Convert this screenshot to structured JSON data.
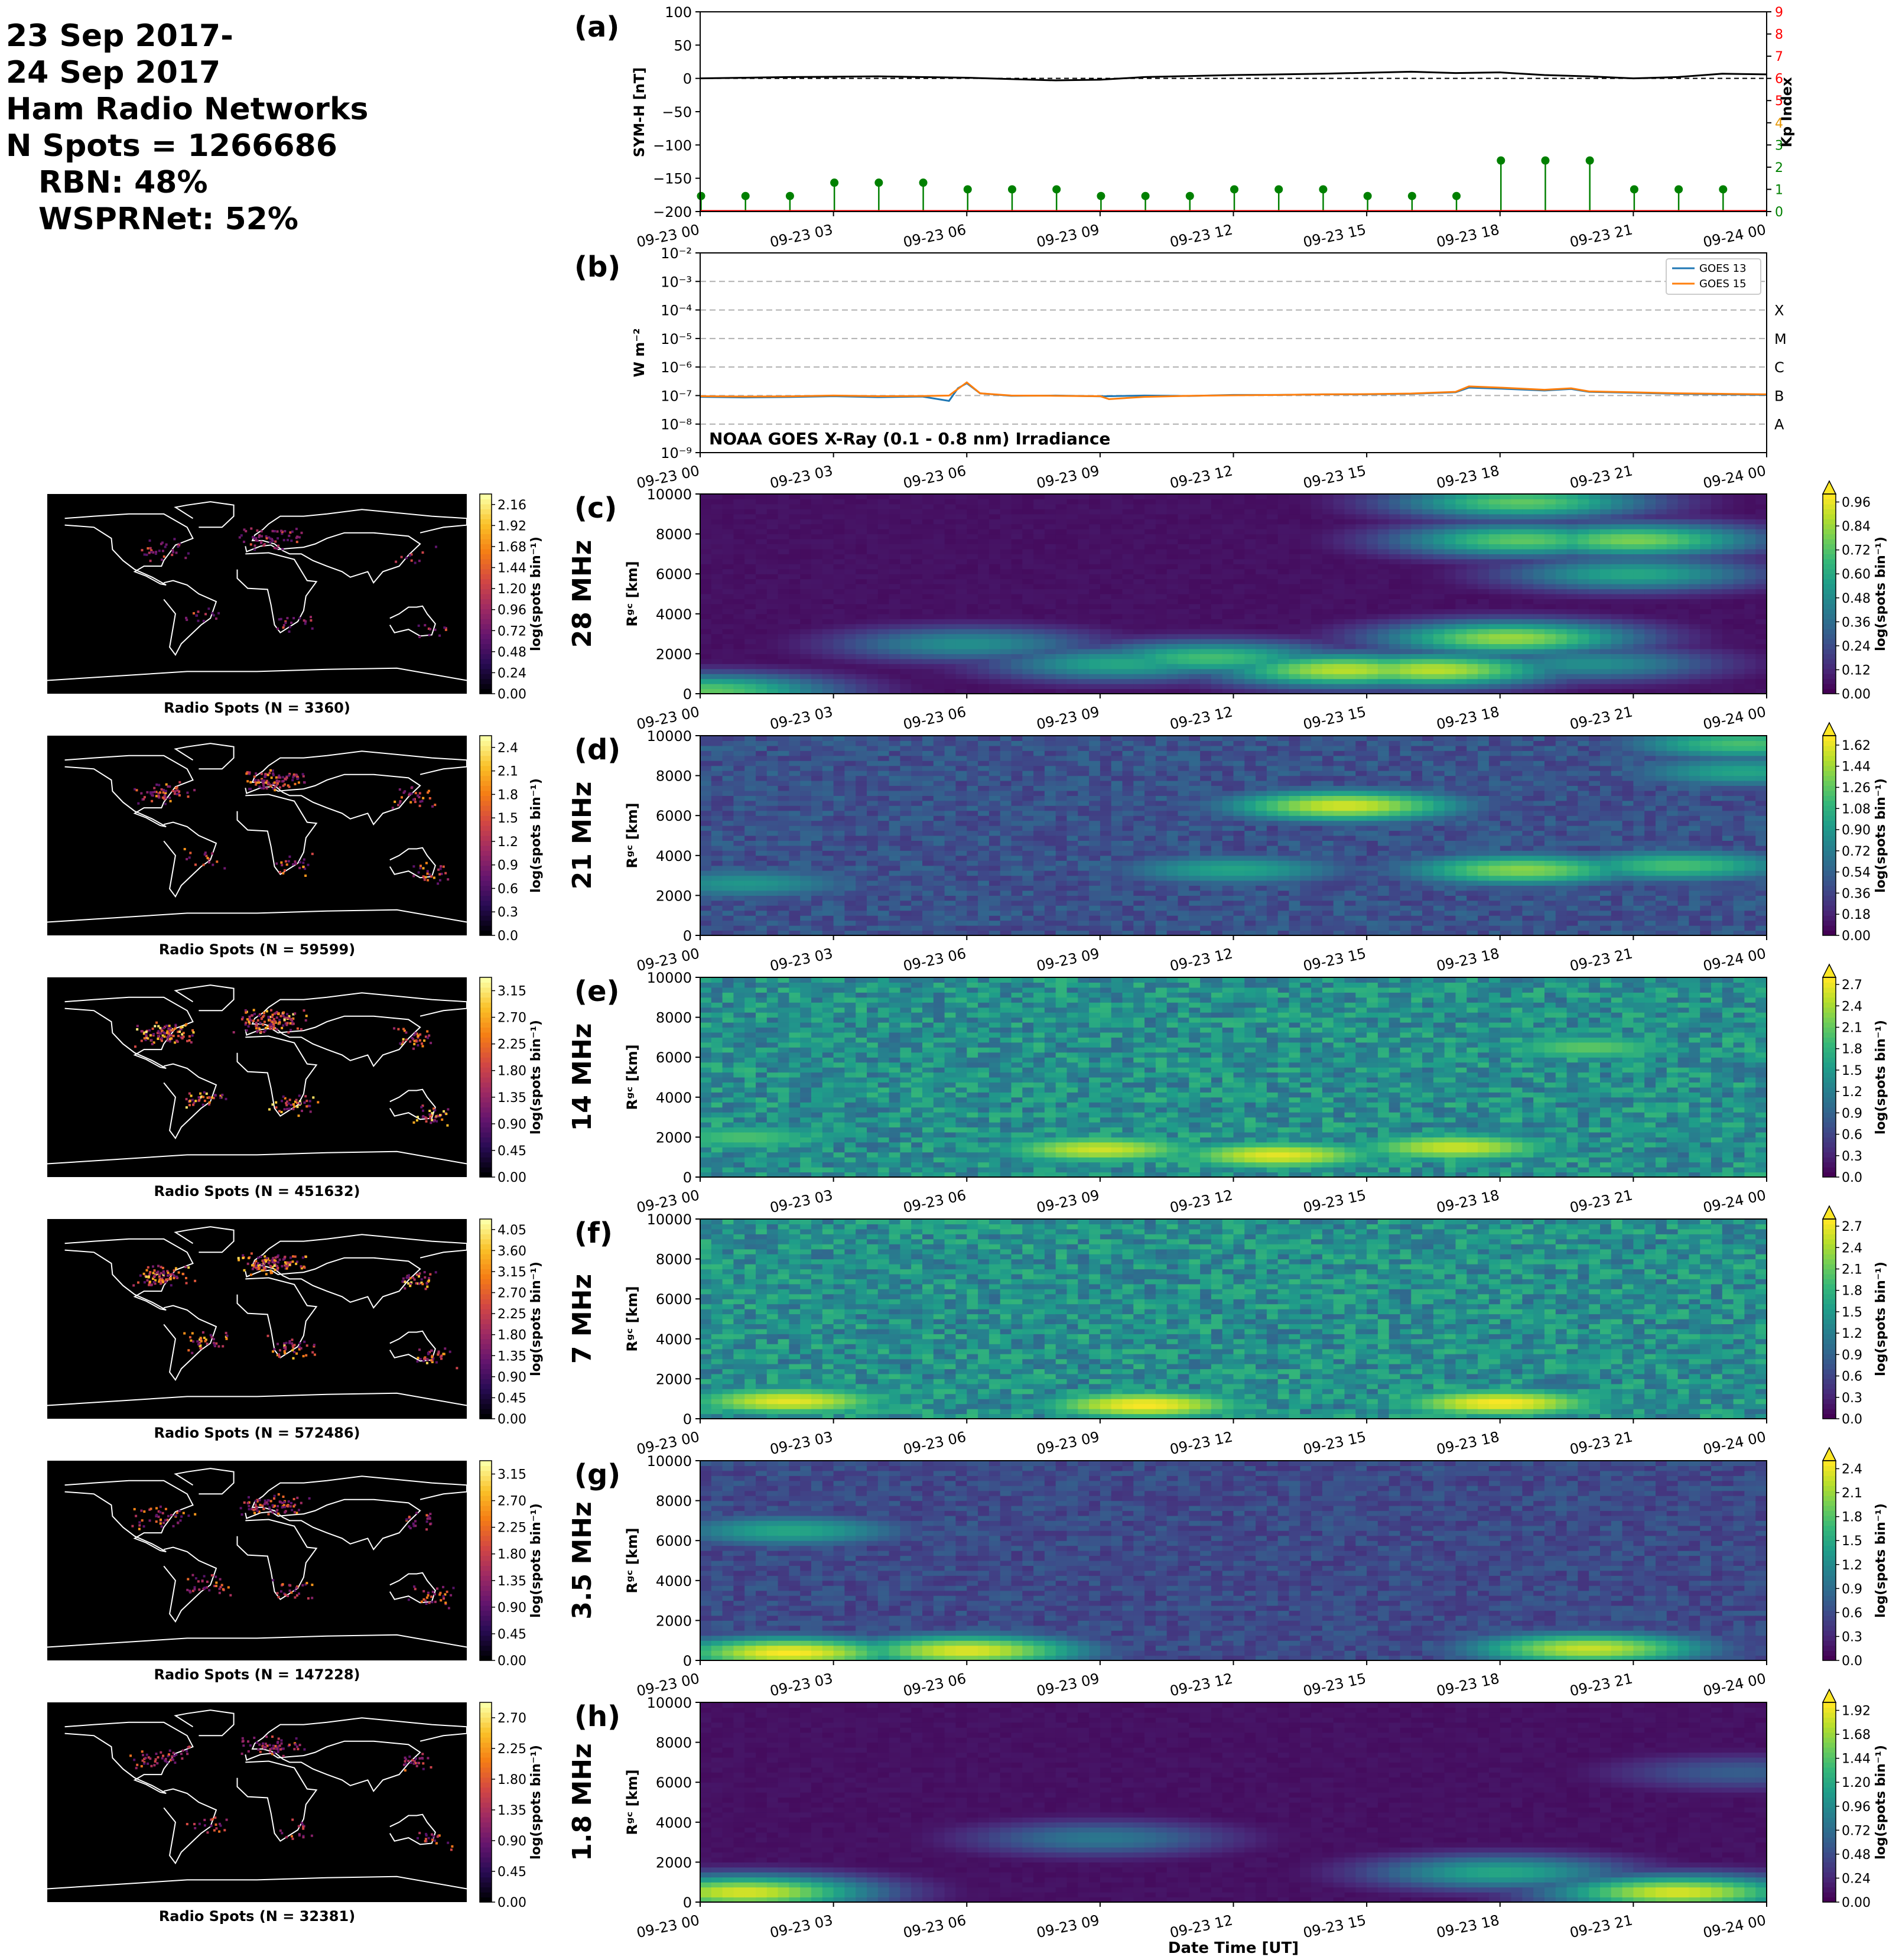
{
  "header": {
    "lines": [
      "23 Sep 2017-",
      "24 Sep 2017",
      "Ham Radio Networks",
      "N Spots = 1266686"
    ],
    "sublines": [
      "RBN: 48%",
      "WSPRNet: 52%"
    ]
  },
  "colors": {
    "symh": "#000000",
    "kp_stem": "#008000",
    "kp_axis": "#ff0000",
    "goes13": "#1f77b4",
    "goes15": "#ff7f0e",
    "map_bg": "#000000",
    "coast": "#ffffff"
  },
  "time_ticks": [
    "09-23 00",
    "09-23 03",
    "09-23 06",
    "09-23 09",
    "09-23 12",
    "09-23 15",
    "09-23 18",
    "09-23 21",
    "09-24 00"
  ],
  "x_label": "Date Time [UT]",
  "chart_data": [
    {
      "id": "a",
      "panel_label": "(a)",
      "type": "line",
      "ylabel": "SYM-H [nT]",
      "ylim": [
        -200,
        100
      ],
      "yticks": [
        "100",
        "50",
        "0",
        "−50",
        "−100",
        "−150",
        "−200"
      ],
      "x_hours": [
        0,
        2,
        4,
        6,
        8,
        9,
        10,
        12,
        14,
        16,
        17,
        18,
        19,
        20,
        21,
        22,
        23,
        24
      ],
      "symh": [
        0,
        2,
        3,
        1,
        -3,
        -2,
        2,
        5,
        7,
        10,
        8,
        9,
        5,
        3,
        0,
        2,
        7,
        6
      ],
      "secondary": {
        "ylabel": "Kp Index",
        "ylim": [
          0,
          9
        ],
        "yticks": [
          "0",
          "1",
          "2",
          "3",
          "4",
          "5",
          "6",
          "7",
          "8",
          "9"
        ],
        "kp_hours": [
          0,
          1,
          2,
          3,
          4,
          5,
          6,
          7,
          8,
          9,
          10,
          11,
          12,
          13,
          14,
          15,
          16,
          17,
          18,
          19,
          20,
          21,
          22,
          23
        ],
        "kp": [
          0.7,
          0.7,
          0.7,
          1.3,
          1.3,
          1.3,
          1.0,
          1.0,
          1.0,
          0.7,
          0.7,
          0.7,
          1.0,
          1.0,
          1.0,
          0.7,
          0.7,
          0.7,
          2.3,
          2.3,
          2.3,
          1.0,
          1.0,
          1.0
        ]
      }
    },
    {
      "id": "b",
      "panel_label": "(b)",
      "type": "line",
      "scale": "log",
      "ylabel": "W m⁻²",
      "ylim": [
        1e-09,
        0.01
      ],
      "yticks": [
        "10⁻⁹",
        "10⁻⁸",
        "10⁻⁷",
        "10⁻⁶",
        "10⁻⁵",
        "10⁻⁴",
        "10⁻³",
        "10⁻²"
      ],
      "flare_classes": [
        "A",
        "B",
        "C",
        "M",
        "X"
      ],
      "annotation": "NOAA GOES X-Ray (0.1 - 0.8 nm) Irradiance",
      "legend": "top-right",
      "series": [
        {
          "name": "GOES 13",
          "x_hours": [
            0,
            1,
            2,
            3,
            4,
            5,
            5.6,
            5.8,
            6.0,
            6.3,
            7,
            8,
            9,
            10,
            11,
            12,
            13,
            14,
            15,
            16,
            17,
            17.3,
            18,
            19,
            19.6,
            20,
            21,
            22,
            23,
            24
          ],
          "y": [
            9e-08,
            8.6e-08,
            8.9e-08,
            9.5e-08,
            8.8e-08,
            9.2e-08,
            6.5e-08,
            1.8e-07,
            2.7e-07,
            1.2e-07,
            9.8e-08,
            1e-07,
            9.4e-08,
            1e-07,
            9.7e-08,
            1.05e-07,
            1.05e-07,
            1.1e-07,
            1.1e-07,
            1.15e-07,
            1.3e-07,
            1.9e-07,
            1.75e-07,
            1.5e-07,
            1.7e-07,
            1.35e-07,
            1.25e-07,
            1.15e-07,
            1.1e-07,
            1.05e-07
          ]
        },
        {
          "name": "GOES 15",
          "x_hours": [
            0,
            1,
            2,
            3,
            4,
            5,
            5.6,
            5.8,
            6.0,
            6.3,
            7,
            8,
            9,
            9.2,
            10,
            11,
            12,
            13,
            14,
            15,
            16,
            17,
            17.3,
            18,
            19,
            19.6,
            20,
            21,
            22,
            23,
            24
          ],
          "y": [
            9.5e-08,
            9.2e-08,
            9.4e-08,
            1e-07,
            9.5e-08,
            9.6e-08,
            1e-07,
            1.7e-07,
            2.9e-07,
            1.2e-07,
            1e-07,
            9.8e-08,
            9.5e-08,
            7.5e-08,
            9e-08,
            9.8e-08,
            1.02e-07,
            1.05e-07,
            1.1e-07,
            1.12e-07,
            1.18e-07,
            1.35e-07,
            2.1e-07,
            1.9e-07,
            1.6e-07,
            1.8e-07,
            1.4e-07,
            1.3e-07,
            1.2e-07,
            1.15e-07,
            1.1e-07
          ]
        }
      ]
    },
    {
      "id": "c",
      "panel_label": "(c)",
      "type": "heatmap",
      "band": "28 MHz",
      "ylabel": "Rᵍᶜ [km]",
      "ylim": [
        0,
        10000
      ],
      "yticks": [
        "0",
        "2000",
        "4000",
        "6000",
        "8000",
        "10000"
      ],
      "colorbar": {
        "label": "log(spots bin⁻¹)",
        "ticks": [
          "0.00",
          "0.12",
          "0.24",
          "0.36",
          "0.48",
          "0.60",
          "0.72",
          "0.84",
          "0.96"
        ],
        "max": 1.0,
        "cmap": "viridis"
      },
      "hotspots": [
        {
          "t": 0.15,
          "r": 150,
          "v": 0.75
        },
        {
          "t": 6,
          "r": 2500,
          "v": 0.5
        },
        {
          "t": 9.5,
          "r": 1500,
          "v": 0.6
        },
        {
          "t": 11.5,
          "r": 1800,
          "v": 0.7
        },
        {
          "t": 14.5,
          "r": 1200,
          "v": 0.9
        },
        {
          "t": 16.5,
          "r": 1200,
          "v": 0.9
        },
        {
          "t": 18.2,
          "r": 2800,
          "v": 0.85
        },
        {
          "t": 18.5,
          "r": 9600,
          "v": 0.75
        },
        {
          "t": 18.5,
          "r": 7700,
          "v": 0.75
        },
        {
          "t": 21,
          "r": 7700,
          "v": 0.8
        },
        {
          "t": 21,
          "r": 6000,
          "v": 0.6
        },
        {
          "t": 20,
          "r": 1500,
          "v": 0.5
        }
      ],
      "map": {
        "title": "Radio Spots (N = 3360)",
        "colorbar_ticks": [
          "0.00",
          "0.24",
          "0.48",
          "0.72",
          "0.96",
          "1.20",
          "1.44",
          "1.68",
          "1.92",
          "2.16"
        ],
        "colorbar_label": "log(spots bin⁻¹)",
        "cmap": "inferno",
        "intensity": 0.2
      }
    },
    {
      "id": "d",
      "panel_label": "(d)",
      "type": "heatmap",
      "band": "21 MHz",
      "ylabel": "Rᵍᶜ [km]",
      "ylim": [
        0,
        10000
      ],
      "yticks": [
        "0",
        "2000",
        "4000",
        "6000",
        "8000",
        "10000"
      ],
      "colorbar": {
        "label": "log(spots bin⁻¹)",
        "ticks": [
          "0.00",
          "0.18",
          "0.36",
          "0.54",
          "0.72",
          "0.90",
          "1.08",
          "1.26",
          "1.44",
          "1.62"
        ],
        "max": 1.7,
        "cmap": "viridis"
      },
      "hotspots": [
        {
          "t": 14.5,
          "r": 6500,
          "v": 1.6
        },
        {
          "t": 18.5,
          "r": 3300,
          "v": 1.4
        },
        {
          "t": 22,
          "r": 3500,
          "v": 1.2
        },
        {
          "t": 12,
          "r": 3300,
          "v": 1.0
        },
        {
          "t": 1,
          "r": 2600,
          "v": 0.9
        },
        {
          "t": 23.5,
          "r": 9600,
          "v": 1.2
        },
        {
          "t": 23.5,
          "r": 8200,
          "v": 1.0
        }
      ],
      "map": {
        "title": "Radio Spots (N = 59599)",
        "colorbar_ticks": [
          "0.0",
          "0.3",
          "0.6",
          "0.9",
          "1.2",
          "1.5",
          "1.8",
          "2.1",
          "2.4"
        ],
        "colorbar_label": "log(spots bin⁻¹)",
        "cmap": "inferno",
        "intensity": 0.55
      }
    },
    {
      "id": "e",
      "panel_label": "(e)",
      "type": "heatmap",
      "band": "14 MHz",
      "ylabel": "Rᵍᶜ [km]",
      "ylim": [
        0,
        10000
      ],
      "yticks": [
        "0",
        "2000",
        "4000",
        "6000",
        "8000",
        "10000"
      ],
      "colorbar": {
        "label": "log(spots bin⁻¹)",
        "ticks": [
          "0.0",
          "0.3",
          "0.6",
          "0.9",
          "1.2",
          "1.5",
          "1.8",
          "2.1",
          "2.4",
          "2.7"
        ],
        "max": 2.8,
        "cmap": "viridis"
      },
      "hotspots": [
        {
          "t": 9,
          "r": 1400,
          "v": 2.6
        },
        {
          "t": 13,
          "r": 1100,
          "v": 2.7
        },
        {
          "t": 17,
          "r": 1500,
          "v": 2.6
        },
        {
          "t": 20,
          "r": 6500,
          "v": 2.1
        },
        {
          "t": 1,
          "r": 2000,
          "v": 2.0
        }
      ],
      "map": {
        "title": "Radio Spots (N = 451632)",
        "colorbar_ticks": [
          "0.00",
          "0.45",
          "0.90",
          "1.35",
          "1.80",
          "2.25",
          "2.70",
          "3.15"
        ],
        "colorbar_label": "log(spots bin⁻¹)",
        "cmap": "inferno",
        "intensity": 0.95
      }
    },
    {
      "id": "f",
      "panel_label": "(f)",
      "type": "heatmap",
      "band": "7 MHz",
      "ylabel": "Rᵍᶜ [km]",
      "ylim": [
        0,
        10000
      ],
      "yticks": [
        "0",
        "2000",
        "4000",
        "6000",
        "8000",
        "10000"
      ],
      "colorbar": {
        "label": "log(spots bin⁻¹)",
        "ticks": [
          "0.0",
          "0.3",
          "0.6",
          "0.9",
          "1.2",
          "1.5",
          "1.8",
          "2.1",
          "2.4",
          "2.7"
        ],
        "max": 2.8,
        "cmap": "viridis"
      },
      "hotspots": [
        {
          "t": 2,
          "r": 900,
          "v": 2.7
        },
        {
          "t": 10,
          "r": 700,
          "v": 2.8
        },
        {
          "t": 18,
          "r": 800,
          "v": 2.8
        }
      ],
      "map": {
        "title": "Radio Spots (N = 572486)",
        "colorbar_ticks": [
          "0.00",
          "0.45",
          "0.90",
          "1.35",
          "1.80",
          "2.25",
          "2.70",
          "3.15",
          "3.60",
          "4.05"
        ],
        "colorbar_label": "log(spots bin⁻¹)",
        "cmap": "inferno",
        "intensity": 0.85
      }
    },
    {
      "id": "g",
      "panel_label": "(g)",
      "type": "heatmap",
      "band": "3.5 MHz",
      "ylabel": "Rᵍᶜ [km]",
      "ylim": [
        0,
        10000
      ],
      "yticks": [
        "0",
        "2000",
        "4000",
        "6000",
        "8000",
        "10000"
      ],
      "colorbar": {
        "label": "log(spots bin⁻¹)",
        "ticks": [
          "0.0",
          "0.3",
          "0.6",
          "0.9",
          "1.2",
          "1.5",
          "1.8",
          "2.1",
          "2.4"
        ],
        "max": 2.5,
        "cmap": "viridis"
      },
      "hotspots": [
        {
          "t": 2,
          "r": 400,
          "v": 2.5
        },
        {
          "t": 6,
          "r": 500,
          "v": 2.4
        },
        {
          "t": 20,
          "r": 600,
          "v": 2.3
        },
        {
          "t": 2,
          "r": 6500,
          "v": 1.5
        }
      ],
      "map": {
        "title": "Radio Spots (N = 147228)",
        "colorbar_ticks": [
          "0.00",
          "0.45",
          "0.90",
          "1.35",
          "1.80",
          "2.25",
          "2.70",
          "3.15"
        ],
        "colorbar_label": "log(spots bin⁻¹)",
        "cmap": "inferno",
        "intensity": 0.5
      }
    },
    {
      "id": "h",
      "panel_label": "(h)",
      "type": "heatmap",
      "band": "1.8 MHz",
      "ylabel": "Rᵍᶜ [km]",
      "ylim": [
        0,
        10000
      ],
      "yticks": [
        "0",
        "2000",
        "4000",
        "6000",
        "8000",
        "10000"
      ],
      "colorbar": {
        "label": "log(spots bin⁻¹)",
        "ticks": [
          "0.00",
          "0.24",
          "0.48",
          "0.72",
          "0.96",
          "1.20",
          "1.44",
          "1.68",
          "1.92"
        ],
        "max": 2.0,
        "cmap": "viridis"
      },
      "hotspots": [
        {
          "t": 1,
          "r": 500,
          "v": 1.9
        },
        {
          "t": 22,
          "r": 500,
          "v": 1.9
        },
        {
          "t": 18,
          "r": 1500,
          "v": 1.2
        },
        {
          "t": 9,
          "r": 3200,
          "v": 0.8
        },
        {
          "t": 23.5,
          "r": 6500,
          "v": 0.6
        }
      ],
      "map": {
        "title": "Radio Spots (N = 32381)",
        "colorbar_ticks": [
          "0.00",
          "0.45",
          "0.90",
          "1.35",
          "1.80",
          "2.25",
          "2.70"
        ],
        "colorbar_label": "log(spots bin⁻¹)",
        "cmap": "inferno",
        "intensity": 0.35
      }
    }
  ]
}
